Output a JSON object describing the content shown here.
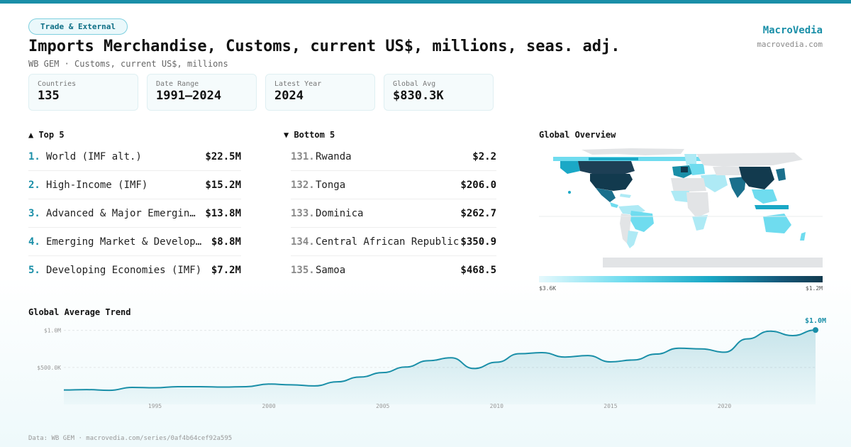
{
  "header": {
    "category": "Trade & External",
    "title": "Imports Merchandise, Customs, current US$, millions, seas. adj.",
    "subtitle": "WB GEM · Customs, current US$, millions",
    "brand_name": "MacroVedia",
    "brand_url": "macrovedia.com"
  },
  "stats": [
    {
      "label": "Countries",
      "value": "135"
    },
    {
      "label": "Date Range",
      "value": "1991–2024"
    },
    {
      "label": "Latest Year",
      "value": "2024"
    },
    {
      "label": "Global Avg",
      "value": "$830.3K"
    }
  ],
  "top5": {
    "heading": "▲ Top 5",
    "items": [
      {
        "rank": "1.",
        "name": "World (IMF alt.)",
        "value": "$22.5M"
      },
      {
        "rank": "2.",
        "name": "High-Income (IMF)",
        "value": "$15.2M"
      },
      {
        "rank": "3.",
        "name": "Advanced & Major Emerging Economies",
        "value": "$13.8M"
      },
      {
        "rank": "4.",
        "name": "Emerging Market & Developing Economies",
        "value": "$8.8M"
      },
      {
        "rank": "5.",
        "name": "Developing Economies (IMF)",
        "value": "$7.2M"
      }
    ]
  },
  "bottom5": {
    "heading": "▼ Bottom 5",
    "items": [
      {
        "rank": "131.",
        "name": "Rwanda",
        "value": "$2.2"
      },
      {
        "rank": "132.",
        "name": "Tonga",
        "value": "$206.0"
      },
      {
        "rank": "133.",
        "name": "Dominica",
        "value": "$262.7"
      },
      {
        "rank": "134.",
        "name": "Central African Republic",
        "value": "$350.9"
      },
      {
        "rank": "135.",
        "name": "Samoa",
        "value": "$468.5"
      }
    ]
  },
  "map": {
    "heading": "Global Overview",
    "legend_min": "$3.6K",
    "legend_max": "$1.2M",
    "colors": {
      "low": "#e6f9fd",
      "mid": "#1aa8c6",
      "high": "#123a4e",
      "nodata": "#e2e4e6"
    }
  },
  "trend": {
    "heading": "Global Average Trend",
    "end_label": "$1.0M",
    "line_color": "#1a8fa8"
  },
  "chart_data": {
    "type": "area",
    "title": "Global Average Trend",
    "x": [
      1991,
      1992,
      1993,
      1994,
      1995,
      1996,
      1997,
      1998,
      1999,
      2000,
      2001,
      2002,
      2003,
      2004,
      2005,
      2006,
      2007,
      2008,
      2009,
      2010,
      2011,
      2012,
      2013,
      2014,
      2015,
      2016,
      2017,
      2018,
      2019,
      2020,
      2021,
      2022,
      2023,
      2024
    ],
    "values": [
      195,
      200,
      190,
      230,
      225,
      240,
      240,
      235,
      240,
      275,
      265,
      250,
      305,
      370,
      430,
      505,
      590,
      630,
      485,
      570,
      685,
      700,
      640,
      660,
      575,
      600,
      680,
      760,
      750,
      705,
      885,
      990,
      930,
      1005
    ],
    "value_unit": "thousand US$",
    "yticks": [
      {
        "value": 500,
        "label": "$500.0K"
      },
      {
        "value": 1000,
        "label": "$1.0M"
      }
    ],
    "xticks": [
      1995,
      2000,
      2005,
      2010,
      2015,
      2020
    ],
    "ylim": [
      0,
      1150
    ],
    "xlim": [
      1991,
      2024
    ],
    "grid": true
  },
  "footer": "Data: WB GEM · macrovedia.com/series/0af4b64cef92a595"
}
